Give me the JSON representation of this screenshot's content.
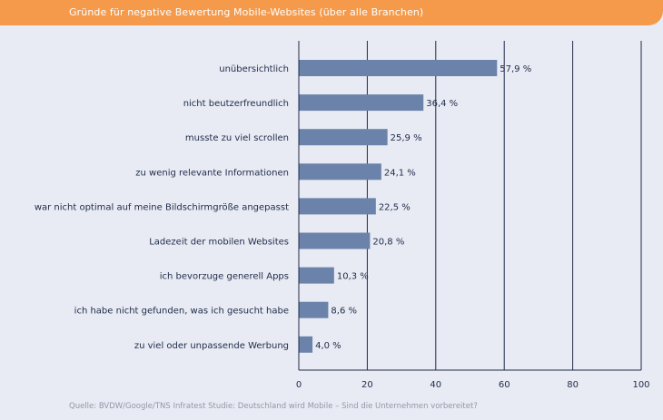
{
  "header": {
    "title": "Gründe für negative Bewertung Mobile-Websites (über alle Branchen)"
  },
  "chart_data": {
    "type": "bar",
    "orientation": "horizontal",
    "title": "Gründe für negative Bewertung Mobile-Websites (über alle Branchen)",
    "categories": [
      "unübersichtlich",
      "nicht beutzerfreundlich",
      "musste zu viel scrollen",
      "zu wenig relevante Informationen",
      "war nicht optimal auf meine Bildschirmgröße angepasst",
      "Ladezeit der mobilen Websites",
      "ich bevorzuge generell Apps",
      "ich habe nicht gefunden, was ich gesucht habe",
      "zu viel oder unpassende Werbung"
    ],
    "values": [
      57.9,
      36.4,
      25.9,
      24.1,
      22.5,
      20.8,
      10.3,
      8.6,
      4.0
    ],
    "value_labels": [
      "57,9 %",
      "36,4 %",
      "25,9 %",
      "24,1 %",
      "22,5 %",
      "20,8 %",
      "10,3 %",
      "8,6 %",
      "4,0 %"
    ],
    "xlim": [
      0,
      100
    ],
    "xticks": [
      0,
      20,
      40,
      60,
      80,
      100
    ],
    "grid": true,
    "bar_color": "#6b83ab",
    "grid_color": "#1f2b4a"
  },
  "source": "Quelle: BVDW/Google/TNS Infratest Studie: Deutschland wird Mobile – Sind die Unternehmen vorbereitet?"
}
